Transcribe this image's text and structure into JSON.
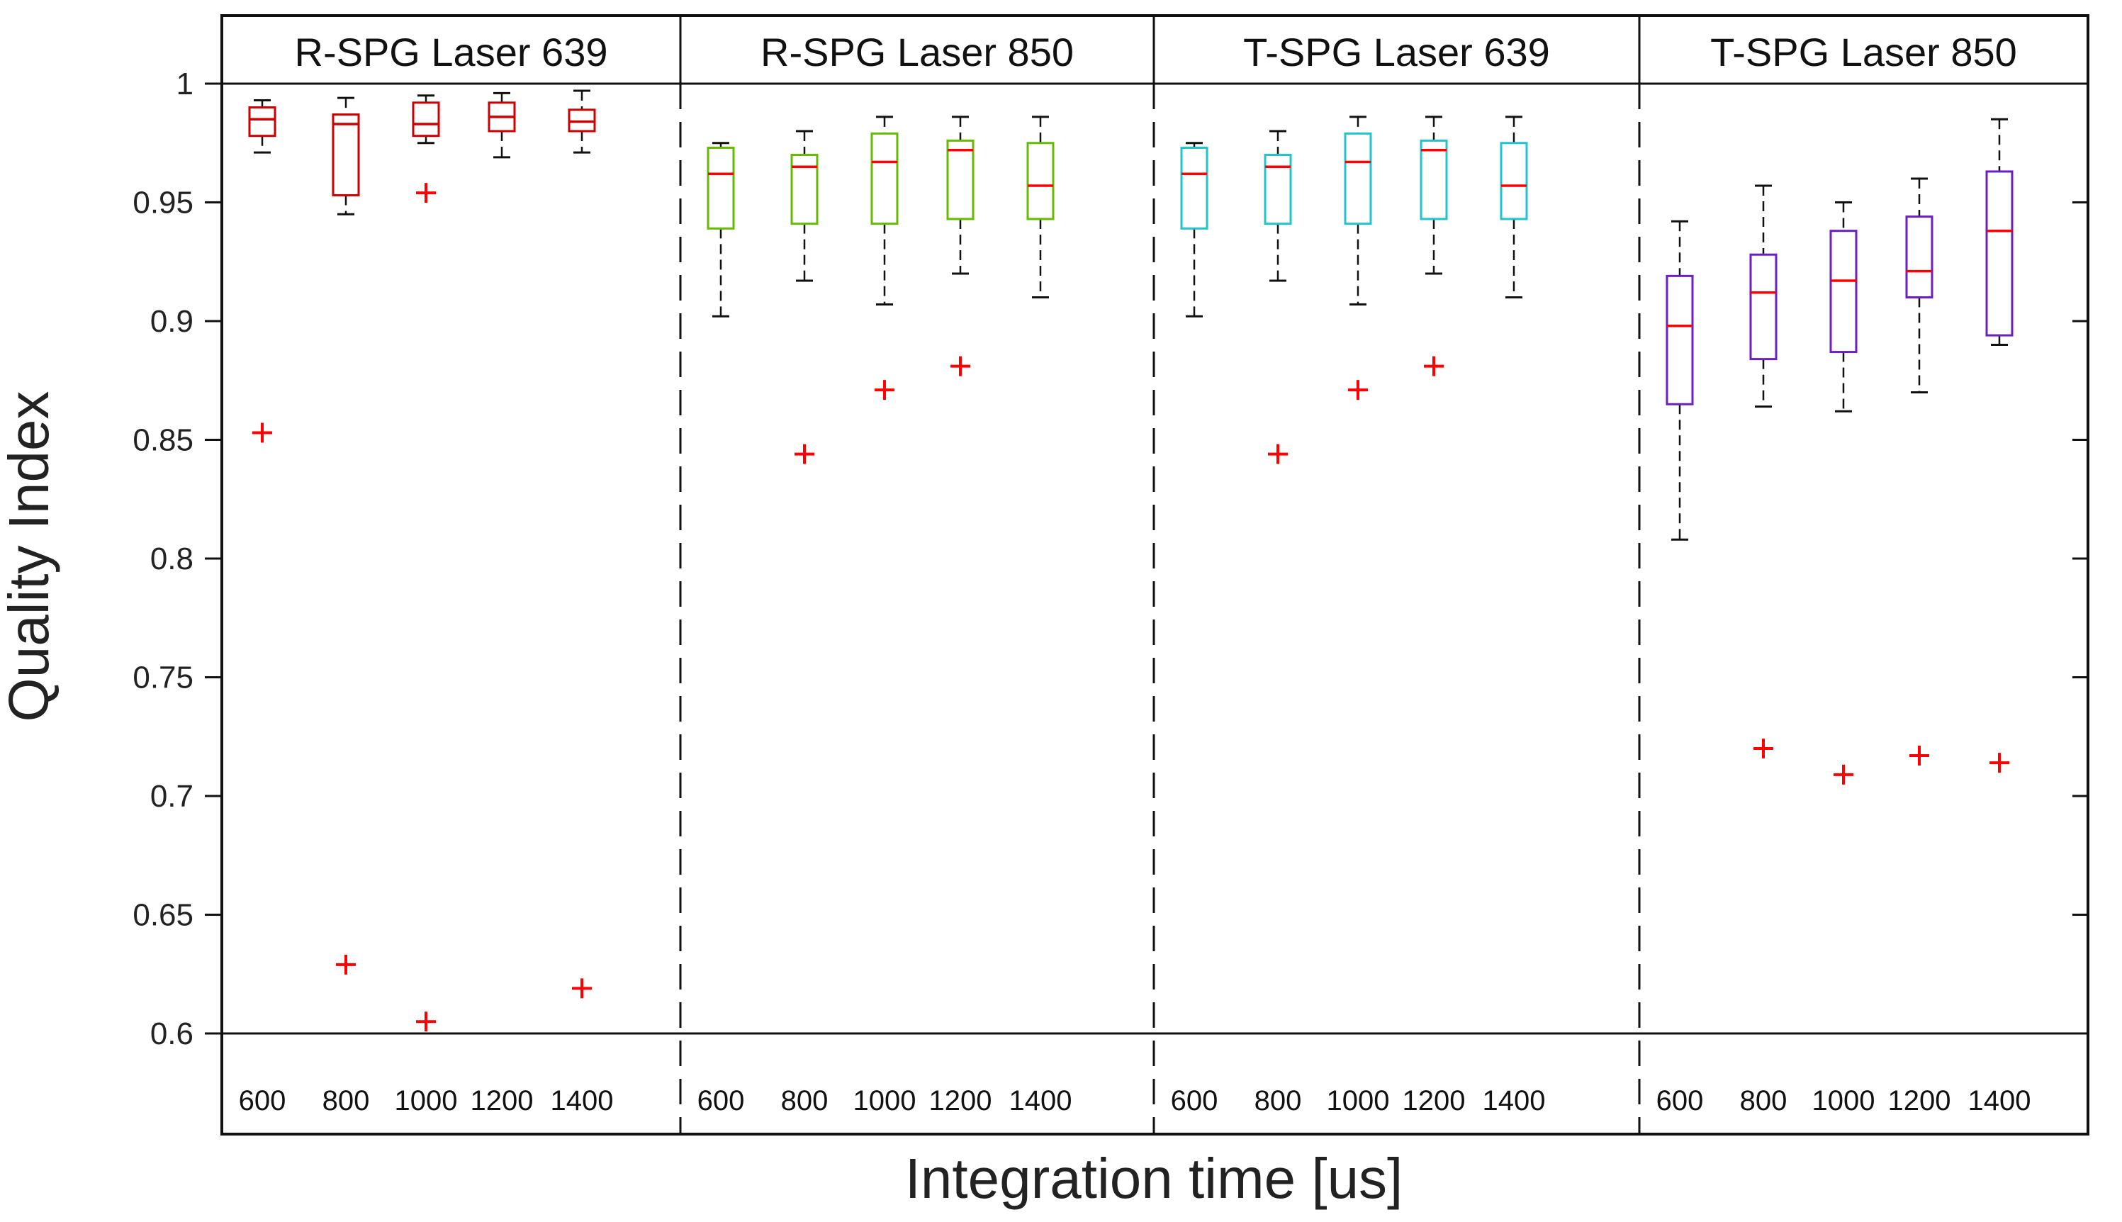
{
  "chart_data": {
    "type": "box",
    "ylabel": "Quality Index",
    "xlabel": "Integration time [us]",
    "ylim": [
      0.6,
      1.0
    ],
    "yticks": [
      "1",
      "0.95",
      "0.9",
      "0.85",
      "0.8",
      "0.75",
      "0.7",
      "0.65",
      "0.6"
    ],
    "ytick_values": [
      1.0,
      0.95,
      0.9,
      0.85,
      0.8,
      0.75,
      0.7,
      0.65,
      0.6
    ],
    "categories": [
      "600",
      "800",
      "1000",
      "1200",
      "1400"
    ],
    "panels": [
      {
        "title": "R-SPG Laser 639",
        "box_color": "#cc0000",
        "median_color": "#cc0000",
        "boxes": [
          {
            "x": "600",
            "lower_whisker": 0.971,
            "q1": 0.978,
            "median": 0.985,
            "q3": 0.99,
            "upper_whisker": 0.993,
            "outliers": [
              0.853
            ]
          },
          {
            "x": "800",
            "lower_whisker": 0.945,
            "q1": 0.953,
            "median": 0.983,
            "q3": 0.987,
            "upper_whisker": 0.994,
            "outliers": [
              0.629
            ]
          },
          {
            "x": "1000",
            "lower_whisker": 0.975,
            "q1": 0.978,
            "median": 0.983,
            "q3": 0.992,
            "upper_whisker": 0.995,
            "outliers": [
              0.954,
              0.605
            ]
          },
          {
            "x": "1200",
            "lower_whisker": 0.969,
            "q1": 0.98,
            "median": 0.986,
            "q3": 0.992,
            "upper_whisker": 0.996,
            "outliers": []
          },
          {
            "x": "1400",
            "lower_whisker": 0.971,
            "q1": 0.98,
            "median": 0.984,
            "q3": 0.989,
            "upper_whisker": 0.997,
            "outliers": [
              0.619
            ]
          }
        ]
      },
      {
        "title": "R-SPG Laser 850",
        "box_color": "#66bb00",
        "median_color": "#ff0000",
        "boxes": [
          {
            "x": "600",
            "lower_whisker": 0.902,
            "q1": 0.939,
            "median": 0.962,
            "q3": 0.973,
            "upper_whisker": 0.975,
            "outliers": []
          },
          {
            "x": "800",
            "lower_whisker": 0.917,
            "q1": 0.941,
            "median": 0.965,
            "q3": 0.97,
            "upper_whisker": 0.98,
            "outliers": [
              0.844
            ]
          },
          {
            "x": "1000",
            "lower_whisker": 0.907,
            "q1": 0.941,
            "median": 0.967,
            "q3": 0.979,
            "upper_whisker": 0.986,
            "outliers": [
              0.871
            ]
          },
          {
            "x": "1200",
            "lower_whisker": 0.92,
            "q1": 0.943,
            "median": 0.972,
            "q3": 0.976,
            "upper_whisker": 0.986,
            "outliers": [
              0.881
            ]
          },
          {
            "x": "1400",
            "lower_whisker": 0.91,
            "q1": 0.943,
            "median": 0.957,
            "q3": 0.975,
            "upper_whisker": 0.986,
            "outliers": []
          }
        ]
      },
      {
        "title": "T-SPG Laser 639",
        "box_color": "#22c4cc",
        "median_color": "#ff0000",
        "boxes": [
          {
            "x": "600",
            "lower_whisker": 0.902,
            "q1": 0.939,
            "median": 0.962,
            "q3": 0.973,
            "upper_whisker": 0.975,
            "outliers": []
          },
          {
            "x": "800",
            "lower_whisker": 0.917,
            "q1": 0.941,
            "median": 0.965,
            "q3": 0.97,
            "upper_whisker": 0.98,
            "outliers": [
              0.844
            ]
          },
          {
            "x": "1000",
            "lower_whisker": 0.907,
            "q1": 0.941,
            "median": 0.967,
            "q3": 0.979,
            "upper_whisker": 0.986,
            "outliers": [
              0.871
            ]
          },
          {
            "x": "1200",
            "lower_whisker": 0.92,
            "q1": 0.943,
            "median": 0.972,
            "q3": 0.976,
            "upper_whisker": 0.986,
            "outliers": [
              0.881
            ]
          },
          {
            "x": "1400",
            "lower_whisker": 0.91,
            "q1": 0.943,
            "median": 0.957,
            "q3": 0.975,
            "upper_whisker": 0.986,
            "outliers": []
          }
        ]
      },
      {
        "title": "T-SPG Laser 850",
        "box_color": "#6a1fc0",
        "median_color": "#ff0000",
        "boxes": [
          {
            "x": "600",
            "lower_whisker": 0.808,
            "q1": 0.865,
            "median": 0.898,
            "q3": 0.919,
            "upper_whisker": 0.942,
            "outliers": []
          },
          {
            "x": "800",
            "lower_whisker": 0.864,
            "q1": 0.884,
            "median": 0.912,
            "q3": 0.928,
            "upper_whisker": 0.957,
            "outliers": [
              0.72
            ]
          },
          {
            "x": "1000",
            "lower_whisker": 0.862,
            "q1": 0.887,
            "median": 0.917,
            "q3": 0.938,
            "upper_whisker": 0.95,
            "outliers": [
              0.709
            ]
          },
          {
            "x": "1200",
            "lower_whisker": 0.87,
            "q1": 0.91,
            "median": 0.921,
            "q3": 0.944,
            "upper_whisker": 0.96,
            "outliers": [
              0.717
            ]
          },
          {
            "x": "1400",
            "lower_whisker": 0.89,
            "q1": 0.894,
            "median": 0.938,
            "q3": 0.963,
            "upper_whisker": 0.985,
            "outliers": [
              0.714
            ]
          }
        ]
      }
    ],
    "outlier_color": "#ff0000",
    "whisker_color": "#111111"
  }
}
